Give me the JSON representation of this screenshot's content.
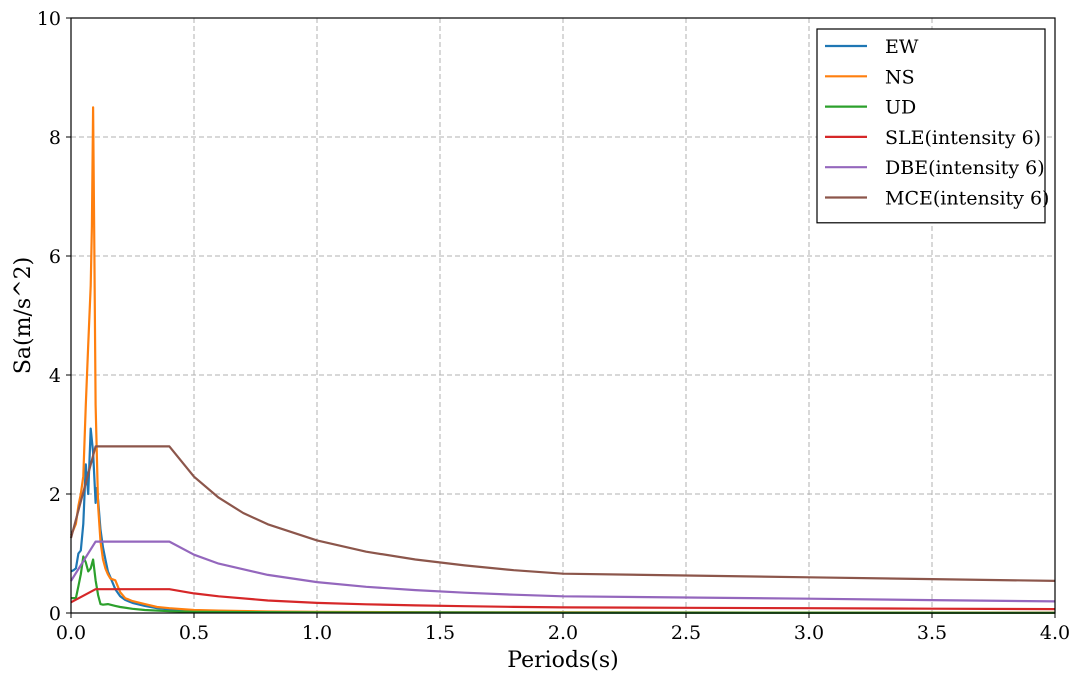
{
  "chart_data": {
    "type": "line",
    "xlabel": "Periods(s)",
    "ylabel": "Sa(m/s^2)",
    "xlim": [
      0,
      4.0
    ],
    "ylim": [
      0,
      10
    ],
    "xticks": [
      "0.0",
      "0.5",
      "1.0",
      "1.5",
      "2.0",
      "2.5",
      "3.0",
      "3.5",
      "4.0"
    ],
    "yticks": [
      "0",
      "2",
      "4",
      "6",
      "8",
      "10"
    ],
    "grid": true,
    "legend_position": "top-right",
    "series": [
      {
        "name": "EW",
        "color": "#1f77b4",
        "x": [
          0,
          0.01,
          0.02,
          0.03,
          0.04,
          0.05,
          0.06,
          0.07,
          0.08,
          0.09,
          0.1,
          0.105,
          0.11,
          0.12,
          0.13,
          0.14,
          0.15,
          0.16,
          0.18,
          0.2,
          0.22,
          0.25,
          0.3,
          0.35,
          0.4,
          0.5,
          0.6,
          0.8,
          1.0,
          1.5,
          2.0,
          3.0,
          4.0
        ],
        "y": [
          0.7,
          0.72,
          0.75,
          1.0,
          1.05,
          1.5,
          2.5,
          2.0,
          3.1,
          2.7,
          1.85,
          2.1,
          1.9,
          1.4,
          1.1,
          0.9,
          0.7,
          0.6,
          0.4,
          0.28,
          0.22,
          0.17,
          0.12,
          0.08,
          0.06,
          0.04,
          0.03,
          0.02,
          0.015,
          0.01,
          0.008,
          0.006,
          0.005
        ]
      },
      {
        "name": "NS",
        "color": "#ff7f0e",
        "x": [
          0,
          0.02,
          0.03,
          0.04,
          0.05,
          0.06,
          0.07,
          0.08,
          0.085,
          0.09,
          0.095,
          0.1,
          0.11,
          0.12,
          0.13,
          0.14,
          0.15,
          0.16,
          0.18,
          0.2,
          0.22,
          0.25,
          0.3,
          0.35,
          0.4,
          0.5,
          0.6,
          0.8,
          1.0,
          1.5,
          2.0,
          3.0,
          4.0
        ],
        "y": [
          1.3,
          1.5,
          1.8,
          2.0,
          2.3,
          3.5,
          4.5,
          5.5,
          6.5,
          8.5,
          6.0,
          3.5,
          1.8,
          1.2,
          0.9,
          0.75,
          0.65,
          0.58,
          0.55,
          0.35,
          0.25,
          0.2,
          0.15,
          0.1,
          0.08,
          0.05,
          0.04,
          0.025,
          0.02,
          0.012,
          0.01,
          0.007,
          0.005
        ]
      },
      {
        "name": "UD",
        "color": "#2ca02c",
        "x": [
          0,
          0.02,
          0.03,
          0.04,
          0.05,
          0.06,
          0.07,
          0.08,
          0.09,
          0.1,
          0.11,
          0.12,
          0.13,
          0.15,
          0.18,
          0.2,
          0.25,
          0.3,
          0.4,
          0.5,
          1.0,
          2.0,
          4.0
        ],
        "y": [
          0.25,
          0.25,
          0.45,
          0.65,
          0.95,
          0.85,
          0.7,
          0.75,
          0.9,
          0.55,
          0.3,
          0.15,
          0.14,
          0.15,
          0.12,
          0.1,
          0.07,
          0.05,
          0.03,
          0.02,
          0.01,
          0.005,
          0.003
        ]
      },
      {
        "name": "SLE(intensity 6)",
        "color": "#d62728",
        "x": [
          0,
          0.1,
          0.2,
          0.3,
          0.4,
          0.5,
          0.6,
          0.8,
          1.0,
          1.2,
          1.4,
          1.6,
          1.8,
          2.0,
          2.5,
          3.0,
          3.5,
          4.0
        ],
        "y": [
          0.18,
          0.4,
          0.4,
          0.4,
          0.4,
          0.33,
          0.28,
          0.21,
          0.17,
          0.147,
          0.128,
          0.114,
          0.103,
          0.094,
          0.087,
          0.08,
          0.072,
          0.065
        ]
      },
      {
        "name": "DBE(intensity 6)",
        "color": "#9467bd",
        "x": [
          0,
          0.1,
          0.2,
          0.3,
          0.4,
          0.5,
          0.6,
          0.8,
          1.0,
          1.2,
          1.4,
          1.6,
          1.8,
          2.0,
          2.5,
          3.0,
          3.5,
          4.0
        ],
        "y": [
          0.54,
          1.2,
          1.2,
          1.2,
          1.2,
          0.98,
          0.83,
          0.64,
          0.52,
          0.44,
          0.385,
          0.341,
          0.307,
          0.28,
          0.26,
          0.24,
          0.217,
          0.195
        ]
      },
      {
        "name": "MCE(intensity 6)",
        "color": "#8c564b",
        "x": [
          0,
          0.1,
          0.2,
          0.3,
          0.4,
          0.5,
          0.6,
          0.7,
          0.8,
          1.0,
          1.2,
          1.4,
          1.6,
          1.8,
          2.0,
          2.5,
          3.0,
          3.5,
          4.0
        ],
        "y": [
          1.26,
          2.8,
          2.8,
          2.8,
          2.8,
          2.29,
          1.94,
          1.68,
          1.49,
          1.22,
          1.03,
          0.9,
          0.8,
          0.72,
          0.66,
          0.63,
          0.6,
          0.57,
          0.54
        ]
      }
    ]
  }
}
